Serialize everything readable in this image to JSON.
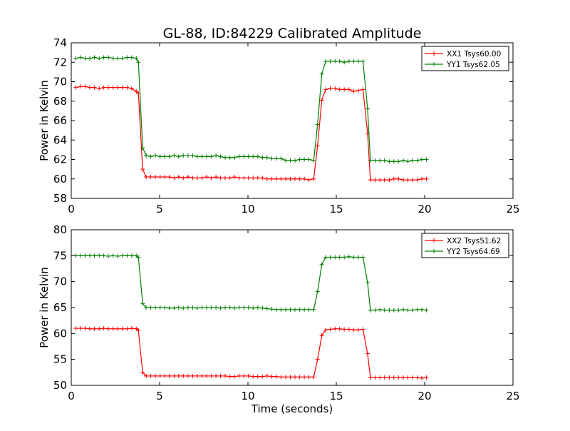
{
  "figure": {
    "title": "GL-88, ID:84229 Calibrated Amplitude"
  },
  "chart_data": [
    {
      "type": "line",
      "title": "GL-88, ID:84229 Calibrated Amplitude",
      "xlabel": "",
      "ylabel": "Power in Kelvin",
      "xlim": [
        0,
        25
      ],
      "ylim": [
        58,
        74
      ],
      "xticks": [
        0,
        5,
        10,
        15,
        20,
        25
      ],
      "yticks": [
        58,
        60,
        62,
        64,
        66,
        68,
        70,
        72,
        74
      ],
      "grid": false,
      "legend_position": "top-right",
      "x": [
        0.26,
        0.52,
        0.79,
        1.05,
        1.31,
        1.58,
        1.84,
        2.1,
        2.37,
        2.63,
        2.89,
        3.16,
        3.42,
        3.68,
        3.8,
        4.04,
        4.24,
        4.5,
        4.76,
        5.03,
        5.29,
        5.55,
        5.82,
        6.08,
        6.34,
        6.61,
        6.87,
        7.13,
        7.4,
        7.66,
        7.92,
        8.19,
        8.45,
        8.71,
        8.98,
        9.24,
        9.5,
        9.77,
        10.03,
        10.29,
        10.56,
        10.82,
        11.08,
        11.35,
        11.61,
        11.87,
        12.14,
        12.4,
        12.66,
        12.93,
        13.19,
        13.45,
        13.72,
        13.94,
        14.18,
        14.4,
        14.66,
        14.93,
        15.19,
        15.45,
        15.72,
        15.98,
        16.24,
        16.51,
        16.77,
        16.93,
        17.21,
        17.47,
        17.73,
        18.0,
        18.26,
        18.52,
        18.79,
        19.05,
        19.31,
        19.58,
        19.84,
        20.1
      ],
      "series": [
        {
          "name": "XX1 Tsys60.00",
          "color": "#ff0000",
          "values": [
            69.4,
            69.5,
            69.5,
            69.4,
            69.4,
            69.3,
            69.4,
            69.4,
            69.4,
            69.4,
            69.4,
            69.4,
            69.3,
            69.0,
            68.8,
            61.0,
            60.2,
            60.2,
            60.2,
            60.2,
            60.2,
            60.2,
            60.1,
            60.2,
            60.1,
            60.2,
            60.1,
            60.1,
            60.1,
            60.2,
            60.1,
            60.2,
            60.1,
            60.1,
            60.1,
            60.2,
            60.1,
            60.1,
            60.1,
            60.1,
            60.1,
            60.1,
            60.0,
            60.0,
            60.0,
            60.0,
            60.0,
            60.0,
            60.0,
            60.0,
            60.0,
            59.9,
            60.0,
            63.4,
            68.1,
            69.2,
            69.3,
            69.3,
            69.2,
            69.2,
            69.2,
            69.0,
            69.1,
            69.2,
            64.7,
            59.9,
            59.9,
            59.9,
            59.9,
            59.9,
            60.0,
            60.0,
            59.9,
            59.9,
            59.9,
            59.9,
            60.0,
            60.0
          ]
        },
        {
          "name": "YY1 Tsys62.05",
          "color": "#008000",
          "values": [
            72.4,
            72.5,
            72.4,
            72.4,
            72.5,
            72.4,
            72.5,
            72.5,
            72.4,
            72.4,
            72.4,
            72.5,
            72.5,
            72.4,
            72.0,
            63.2,
            62.4,
            62.3,
            62.4,
            62.3,
            62.3,
            62.3,
            62.4,
            62.3,
            62.4,
            62.4,
            62.4,
            62.3,
            62.3,
            62.3,
            62.3,
            62.4,
            62.3,
            62.2,
            62.2,
            62.2,
            62.3,
            62.3,
            62.3,
            62.3,
            62.3,
            62.2,
            62.2,
            62.1,
            62.1,
            62.1,
            61.9,
            61.9,
            61.9,
            62.0,
            62.0,
            62.0,
            61.9,
            65.6,
            70.8,
            72.1,
            72.1,
            72.1,
            72.1,
            72.0,
            72.1,
            72.1,
            72.1,
            72.1,
            67.2,
            61.9,
            61.9,
            61.9,
            61.9,
            61.8,
            61.8,
            61.8,
            61.9,
            61.8,
            61.9,
            61.9,
            62.0,
            62.0
          ]
        }
      ]
    },
    {
      "type": "line",
      "title": "",
      "xlabel": "Time (seconds)",
      "ylabel": "Power in Kelvin",
      "xlim": [
        0,
        25
      ],
      "ylim": [
        50,
        80
      ],
      "xticks": [
        0,
        5,
        10,
        15,
        20,
        25
      ],
      "yticks": [
        50,
        55,
        60,
        65,
        70,
        75,
        80
      ],
      "grid": false,
      "legend_position": "top-right",
      "x": [
        0.26,
        0.52,
        0.79,
        1.05,
        1.31,
        1.58,
        1.84,
        2.1,
        2.37,
        2.63,
        2.89,
        3.16,
        3.42,
        3.68,
        3.8,
        4.04,
        4.24,
        4.5,
        4.76,
        5.03,
        5.29,
        5.55,
        5.82,
        6.08,
        6.34,
        6.61,
        6.87,
        7.13,
        7.4,
        7.66,
        7.92,
        8.19,
        8.45,
        8.71,
        8.98,
        9.24,
        9.5,
        9.77,
        10.03,
        10.29,
        10.56,
        10.82,
        11.08,
        11.35,
        11.61,
        11.87,
        12.14,
        12.4,
        12.66,
        12.93,
        13.19,
        13.45,
        13.72,
        13.94,
        14.18,
        14.4,
        14.66,
        14.93,
        15.19,
        15.45,
        15.72,
        15.98,
        16.24,
        16.51,
        16.77,
        16.93,
        17.21,
        17.47,
        17.73,
        18.0,
        18.26,
        18.52,
        18.79,
        19.05,
        19.31,
        19.58,
        19.84,
        20.1
      ],
      "series": [
        {
          "name": "XX2 Tsys51.62",
          "color": "#ff0000",
          "values": [
            61.0,
            61.0,
            61.0,
            60.9,
            60.9,
            60.9,
            61.0,
            60.9,
            60.9,
            60.9,
            60.9,
            60.9,
            61.0,
            60.9,
            60.6,
            52.5,
            51.8,
            51.8,
            51.8,
            51.8,
            51.8,
            51.8,
            51.8,
            51.8,
            51.8,
            51.8,
            51.8,
            51.8,
            51.8,
            51.8,
            51.8,
            51.8,
            51.8,
            51.8,
            51.7,
            51.7,
            51.8,
            51.8,
            51.8,
            51.7,
            51.7,
            51.7,
            51.8,
            51.7,
            51.7,
            51.6,
            51.6,
            51.6,
            51.6,
            51.6,
            51.6,
            51.6,
            51.6,
            55.0,
            59.6,
            60.7,
            60.8,
            60.9,
            60.9,
            60.8,
            60.8,
            60.7,
            60.7,
            60.8,
            56.1,
            51.5,
            51.5,
            51.5,
            51.5,
            51.5,
            51.5,
            51.5,
            51.5,
            51.5,
            51.5,
            51.5,
            51.4,
            51.5
          ]
        },
        {
          "name": "YY2 Tsys64.69",
          "color": "#008000",
          "values": [
            75.0,
            75.0,
            75.0,
            75.0,
            75.0,
            75.0,
            75.0,
            74.9,
            75.0,
            74.9,
            75.0,
            75.0,
            75.0,
            75.0,
            74.7,
            65.8,
            65.0,
            65.0,
            65.0,
            65.0,
            65.0,
            64.9,
            64.9,
            65.0,
            64.9,
            65.0,
            65.0,
            64.9,
            65.0,
            65.0,
            65.0,
            65.0,
            64.9,
            65.0,
            65.0,
            64.9,
            65.0,
            65.0,
            65.0,
            64.9,
            65.0,
            64.9,
            64.8,
            64.7,
            64.6,
            64.6,
            64.6,
            64.6,
            64.6,
            64.6,
            64.6,
            64.6,
            64.6,
            68.1,
            73.3,
            74.7,
            74.7,
            74.7,
            74.7,
            74.7,
            74.8,
            74.7,
            74.7,
            74.7,
            69.8,
            64.5,
            64.5,
            64.6,
            64.5,
            64.5,
            64.5,
            64.5,
            64.6,
            64.5,
            64.5,
            64.6,
            64.6,
            64.5
          ]
        }
      ]
    }
  ]
}
